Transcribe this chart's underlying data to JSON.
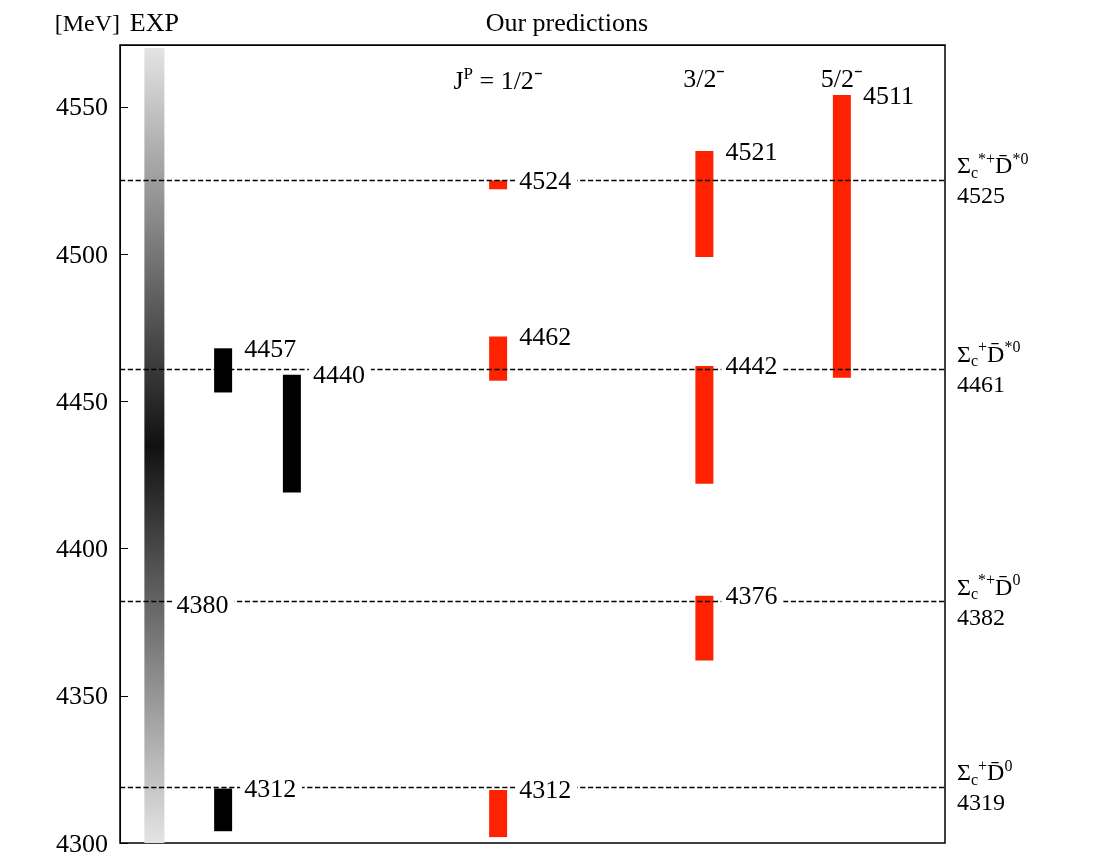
{
  "chart_data": {
    "type": "bar",
    "ylabel": "[MeV]",
    "categories": [
      null,
      null,
      null,
      null,
      null,
      "J$^{P}$ = 1/2⁻",
      null,
      null,
      "3/2⁻",
      null,
      "5/2⁻",
      null
    ],
    "ylim": [
      4300,
      4571
    ],
    "yticks": [
      4300,
      4350,
      4400,
      4450,
      4500,
      4550
    ],
    "annotations": [
      "EXP",
      "Our predictions",
      "4380",
      "4457",
      "4440",
      "4312",
      "4524",
      "4521",
      "4511",
      "4462",
      "4442",
      "4312",
      "4376"
    ],
    "series": [
      {
        "color": "#111111",
        "values": [
          270,
          null,
          null,
          null,
          null,
          null,
          null,
          null,
          null,
          null,
          null,
          null
        ],
        "base": [
          4300,
          null,
          null,
          null,
          null,
          null,
          null,
          null,
          null,
          null,
          null,
          null
        ]
      },
      {
        "color": "#000000",
        "values": [
          null,
          15,
          40,
          null,
          null,
          null,
          null,
          null,
          null,
          null,
          null,
          null
        ],
        "base": [
          null,
          4453,
          4419,
          null,
          null,
          null,
          null,
          null,
          null,
          null,
          null,
          null
        ]
      },
      {
        "color": "#000000",
        "values": [
          null,
          14.5,
          null,
          null,
          null,
          null,
          null,
          null,
          null,
          null,
          null,
          null
        ],
        "base": [
          null,
          4304,
          null,
          null,
          null,
          null,
          null,
          null,
          null,
          null,
          null,
          null
        ]
      },
      {
        "color": "#ff2200",
        "values": [
          null,
          null,
          null,
          null,
          null,
          3,
          null,
          null,
          36,
          null,
          96,
          null
        ],
        "base": [
          null,
          null,
          null,
          null,
          null,
          4522,
          null,
          null,
          4499,
          null,
          4458,
          null
        ]
      },
      {
        "color": "#ff2200",
        "values": [
          null,
          null,
          null,
          null,
          null,
          15,
          null,
          null,
          40,
          null,
          null,
          null
        ],
        "base": [
          null,
          null,
          null,
          null,
          null,
          4457,
          null,
          null,
          4422,
          null,
          null,
          null
        ]
      },
      {
        "color": "#ff2200",
        "values": [
          null,
          null,
          null,
          null,
          null,
          16,
          null,
          null,
          22,
          null,
          null,
          null
        ],
        "base": [
          null,
          null,
          null,
          null,
          null,
          4302,
          null,
          null,
          4362,
          null,
          null,
          null
        ]
      }
    ],
    "ref_lines": [
      {
        "axis": "y",
        "value": 4525,
        "label": "Σ$_{c}$$^{*+}$D̄$^{*0}$\n4525",
        "color": "#000000",
        "line_style": "dashed"
      },
      {
        "axis": "y",
        "value": 4461,
        "label": "Σ$_{c}$$^{+}$D̄$^{*0}$\n4461",
        "color": "#000000",
        "line_style": "dashed"
      },
      {
        "axis": "y",
        "value": 4382,
        "label": "Σ$_{c}$$^{*+}$D̄$^{0}$\n4382",
        "color": "#000000",
        "line_style": "dashed"
      },
      {
        "axis": "y",
        "value": 4319,
        "label": "Σ$_{c}$$^{+}$D̄$^{0}$\n4319",
        "color": "#000000",
        "line_style": "dashed"
      }
    ]
  }
}
